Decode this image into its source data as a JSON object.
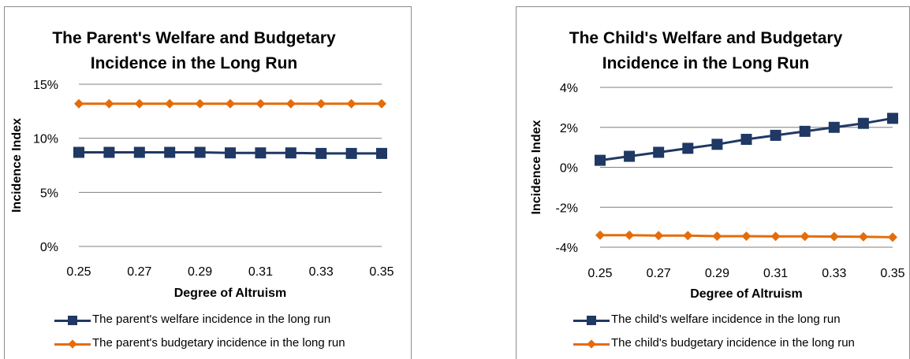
{
  "chart_data": [
    {
      "type": "line",
      "title_line1": "The Parent's Welfare and Budgetary",
      "title_line2": "Incidence in the Long Run",
      "xlabel": "Degree of Altruism",
      "ylabel": "Incidence Index",
      "x": [
        0.25,
        0.26,
        0.27,
        0.28,
        0.29,
        0.3,
        0.31,
        0.32,
        0.33,
        0.34,
        0.35
      ],
      "x_tick_labels": [
        "0.25",
        "0.27",
        "0.29",
        "0.31",
        "0.33",
        "0.35"
      ],
      "y_ticks": [
        "0%",
        "5%",
        "10%",
        "15%"
      ],
      "ylim": [
        0,
        15
      ],
      "grid": true,
      "legend_placement": "bottom",
      "series": [
        {
          "name": "The parent's welfare incidence in the long run",
          "color": "#1f3864",
          "marker": "square",
          "values": [
            8.7,
            8.7,
            8.7,
            8.7,
            8.7,
            8.65,
            8.65,
            8.65,
            8.6,
            8.6,
            8.6
          ]
        },
        {
          "name": "The parent's budgetary incidence in the long run",
          "color": "#e46c0a",
          "marker": "diamond",
          "values": [
            13.2,
            13.2,
            13.2,
            13.2,
            13.2,
            13.2,
            13.2,
            13.2,
            13.2,
            13.2,
            13.2
          ]
        }
      ]
    },
    {
      "type": "line",
      "title_line1": "The Child's Welfare and Budgetary",
      "title_line2": "Incidence in the Long Run",
      "xlabel": "Degree of Altruism",
      "ylabel": "Incidence Index",
      "x": [
        0.25,
        0.26,
        0.27,
        0.28,
        0.29,
        0.3,
        0.31,
        0.32,
        0.33,
        0.34,
        0.35
      ],
      "x_tick_labels": [
        "0.25",
        "0.27",
        "0.29",
        "0.31",
        "0.33",
        "0.35"
      ],
      "y_ticks": [
        "-4%",
        "-2%",
        "0%",
        "2%",
        "4%"
      ],
      "ylim": [
        -4,
        4
      ],
      "grid": true,
      "legend_placement": "bottom",
      "series": [
        {
          "name": "The child's welfare incidence in the long run",
          "color": "#1f3864",
          "marker": "square",
          "values": [
            0.35,
            0.55,
            0.75,
            0.95,
            1.15,
            1.4,
            1.6,
            1.8,
            2.0,
            2.2,
            2.45
          ]
        },
        {
          "name": "The child's budgetary incidence in the long run",
          "color": "#e46c0a",
          "marker": "diamond",
          "values": [
            -3.4,
            -3.4,
            -3.42,
            -3.42,
            -3.45,
            -3.45,
            -3.46,
            -3.46,
            -3.47,
            -3.48,
            -3.5
          ]
        }
      ]
    }
  ]
}
